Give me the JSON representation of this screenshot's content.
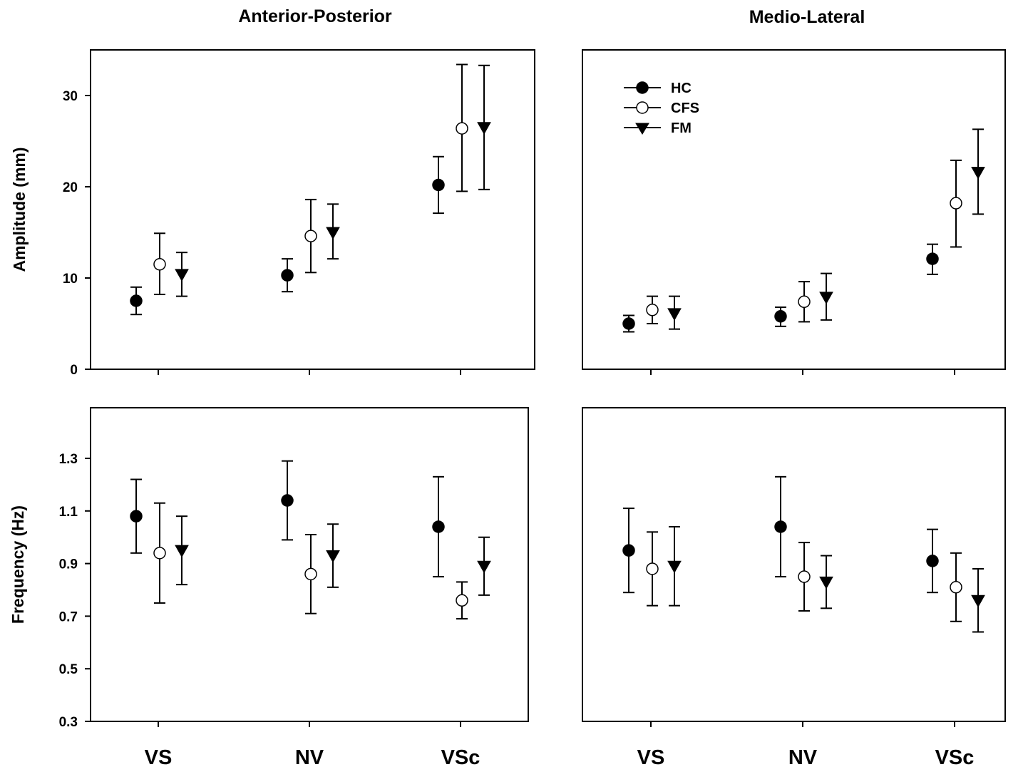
{
  "column_titles": [
    "Anterior-Posterior",
    "Medio-Lateral"
  ],
  "legend": {
    "placement": "top-left",
    "entries": [
      {
        "label": "HC",
        "marker": "filled-circle"
      },
      {
        "label": "CFS",
        "marker": "open-circle"
      },
      {
        "label": "FM",
        "marker": "filled-triangle-down"
      }
    ]
  },
  "chart_data": [
    {
      "type": "scatter",
      "subtitle": "Anterior-Posterior",
      "ylabel": "Amplitude (mm)",
      "ylim": [
        0,
        35
      ],
      "yticks": [
        0,
        10,
        20,
        30
      ],
      "categories": [
        "VS",
        "NV",
        "VSc"
      ],
      "show_category_labels": false,
      "grid": false,
      "series": [
        {
          "name": "HC",
          "marker": "filled-circle",
          "values": [
            7.5,
            10.3,
            20.2
          ],
          "err_low": [
            6.0,
            8.5,
            17.1
          ],
          "err_high": [
            9.0,
            12.1,
            23.3
          ]
        },
        {
          "name": "CFS",
          "marker": "open-circle",
          "values": [
            11.5,
            14.6,
            26.4
          ],
          "err_low": [
            8.2,
            10.6,
            19.5
          ],
          "err_high": [
            14.9,
            18.6,
            33.4
          ]
        },
        {
          "name": "FM",
          "marker": "filled-triangle-down",
          "values": [
            10.4,
            15.0,
            26.5
          ],
          "err_low": [
            8.0,
            12.1,
            19.7
          ],
          "err_high": [
            12.8,
            18.1,
            33.3
          ]
        }
      ]
    },
    {
      "type": "scatter",
      "subtitle": "Medio-Lateral",
      "ylabel": "",
      "ylim": [
        0,
        35
      ],
      "yticks": [],
      "categories": [
        "VS",
        "NV",
        "VSc"
      ],
      "show_category_labels": false,
      "grid": false,
      "series": [
        {
          "name": "HC",
          "marker": "filled-circle",
          "values": [
            5.0,
            5.8,
            12.1
          ],
          "err_low": [
            4.1,
            4.7,
            10.4
          ],
          "err_high": [
            5.9,
            6.8,
            13.7
          ]
        },
        {
          "name": "CFS",
          "marker": "open-circle",
          "values": [
            6.5,
            7.4,
            18.2
          ],
          "err_low": [
            5.0,
            5.2,
            13.4
          ],
          "err_high": [
            8.0,
            9.6,
            22.9
          ]
        },
        {
          "name": "FM",
          "marker": "filled-triangle-down",
          "values": [
            6.1,
            7.9,
            21.6
          ],
          "err_low": [
            4.4,
            5.4,
            17.0
          ],
          "err_high": [
            8.0,
            10.5,
            26.3
          ]
        }
      ]
    },
    {
      "type": "scatter",
      "ylabel": "Frequency (Hz)",
      "ylim": [
        0.3,
        1.49
      ],
      "yticks": [
        0.3,
        0.5,
        0.7,
        0.9,
        1.1,
        1.3
      ],
      "categories": [
        "VS",
        "NV",
        "VSc"
      ],
      "show_category_labels": true,
      "grid": false,
      "series": [
        {
          "name": "HC",
          "marker": "filled-circle",
          "values": [
            1.08,
            1.14,
            1.04
          ],
          "err_low": [
            0.94,
            0.99,
            0.85
          ],
          "err_high": [
            1.22,
            1.29,
            1.23
          ]
        },
        {
          "name": "CFS",
          "marker": "open-circle",
          "values": [
            0.94,
            0.86,
            0.76
          ],
          "err_low": [
            0.75,
            0.71,
            0.69
          ],
          "err_high": [
            1.13,
            1.01,
            0.83
          ]
        },
        {
          "name": "FM",
          "marker": "filled-triangle-down",
          "values": [
            0.95,
            0.93,
            0.89
          ],
          "err_low": [
            0.82,
            0.81,
            0.78
          ],
          "err_high": [
            1.08,
            1.05,
            1.0
          ]
        }
      ]
    },
    {
      "type": "scatter",
      "ylabel": "",
      "ylim": [
        0.3,
        1.49
      ],
      "yticks": [],
      "categories": [
        "VS",
        "NV",
        "VSc"
      ],
      "show_category_labels": true,
      "grid": false,
      "series": [
        {
          "name": "HC",
          "marker": "filled-circle",
          "values": [
            0.95,
            1.04,
            0.91
          ],
          "err_low": [
            0.79,
            0.85,
            0.79
          ],
          "err_high": [
            1.11,
            1.23,
            1.03
          ]
        },
        {
          "name": "CFS",
          "marker": "open-circle",
          "values": [
            0.88,
            0.85,
            0.81
          ],
          "err_low": [
            0.74,
            0.72,
            0.68
          ],
          "err_high": [
            1.02,
            0.98,
            0.94
          ]
        },
        {
          "name": "FM",
          "marker": "filled-triangle-down",
          "values": [
            0.89,
            0.83,
            0.76
          ],
          "err_low": [
            0.74,
            0.73,
            0.64
          ],
          "err_high": [
            1.04,
            0.93,
            0.88
          ]
        }
      ]
    }
  ]
}
